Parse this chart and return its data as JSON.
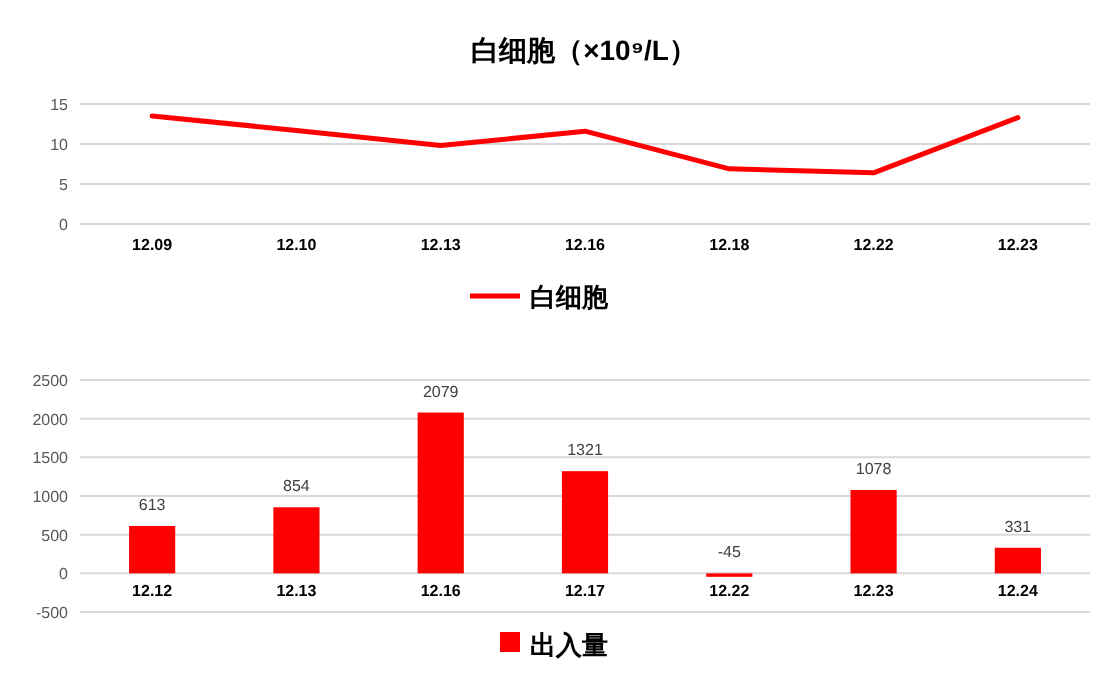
{
  "chart_data": [
    {
      "type": "line",
      "title": "白细胞（×10⁹/L）",
      "categories": [
        "12.09",
        "12.10",
        "12.13",
        "12.16",
        "12.18",
        "12.22",
        "12.23"
      ],
      "series": [
        {
          "name": "白细胞",
          "color": "#ff0000",
          "values": [
            13.5,
            11.7,
            9.8,
            11.6,
            6.9,
            6.4,
            13.3
          ]
        }
      ],
      "ylim": [
        0,
        15
      ],
      "yticks": [
        0,
        5,
        10,
        15
      ],
      "grid": "y",
      "legend": "bottom",
      "marker": "none",
      "line_style": "solid"
    },
    {
      "type": "bar",
      "categories": [
        "12.12",
        "12.13",
        "12.16",
        "12.17",
        "12.22",
        "12.23",
        "12.24"
      ],
      "series": [
        {
          "name": "出入量",
          "color": "#ff0000",
          "values": [
            613,
            854,
            2079,
            1321,
            -45,
            1078,
            331
          ]
        }
      ],
      "ylim": [
        -500,
        2500
      ],
      "yticks": [
        -500,
        0,
        500,
        1000,
        1500,
        2000,
        2500
      ],
      "grid": "y",
      "legend": "bottom",
      "data_labels": true
    }
  ]
}
